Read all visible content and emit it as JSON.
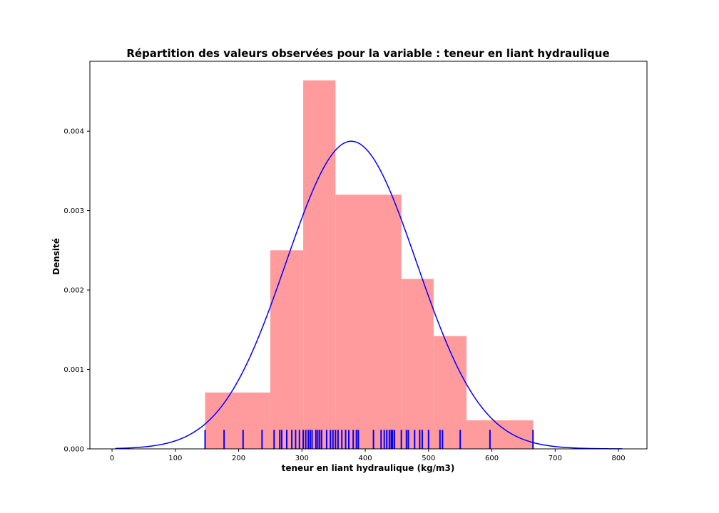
{
  "chart_data": {
    "type": "bar",
    "title": "Répartition des valeurs observées pour la variable : teneur en liant hydraulique",
    "xlabel": "teneur en liant hydraulique (kg/m3)",
    "ylabel": "Densité",
    "xlim": [
      -35,
      845
    ],
    "ylim": [
      0,
      0.00488
    ],
    "x_ticks": [
      0,
      100,
      200,
      300,
      400,
      500,
      600,
      700,
      800
    ],
    "y_ticks": [
      0.0,
      0.001,
      0.002,
      0.003,
      0.004
    ],
    "y_tick_labels": [
      "0.000",
      "0.001",
      "0.002",
      "0.003",
      "0.004"
    ],
    "grid": false,
    "histogram": {
      "color": "#ff9b9d",
      "bins": [
        {
          "x0": 147,
          "x1": 250,
          "density": 0.00071
        },
        {
          "x0": 250,
          "x1": 302,
          "density": 0.0025
        },
        {
          "x0": 302,
          "x1": 353,
          "density": 0.00464
        },
        {
          "x0": 353,
          "x1": 457,
          "density": 0.0032
        },
        {
          "x0": 457,
          "x1": 508,
          "density": 0.00214
        },
        {
          "x0": 508,
          "x1": 560,
          "density": 0.00142
        },
        {
          "x0": 560,
          "x1": 665,
          "density": 0.00036
        }
      ]
    },
    "density_curve": {
      "color": "#0000ff",
      "type": "normal",
      "mean": 378,
      "std": 103,
      "x_range": [
        5,
        806
      ]
    },
    "rug": {
      "color": "#0000ff",
      "height": 0.00024,
      "values": [
        147,
        177,
        207,
        237,
        256,
        265,
        268,
        276,
        284,
        290,
        296,
        302,
        306,
        310,
        313,
        316,
        322,
        325,
        328,
        331,
        339,
        345,
        349,
        353,
        357,
        363,
        369,
        374,
        381,
        386,
        389,
        413,
        425,
        430,
        434,
        438,
        441,
        443,
        446,
        457,
        465,
        468,
        478,
        486,
        490,
        500,
        518,
        522,
        550,
        597,
        665
      ]
    }
  }
}
